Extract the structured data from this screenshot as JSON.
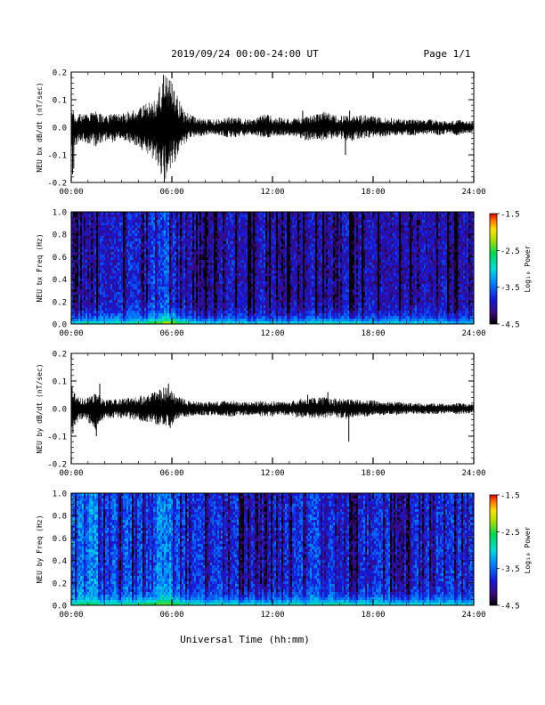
{
  "header": {
    "title": "2019/09/24  00:00-24:00 UT",
    "page": "Page 1/1"
  },
  "footer": {
    "xlabel": "Universal Time (hh:mm)"
  },
  "colorbar": {
    "label": "Log₁₀ Power",
    "ticks": [
      "-1.5",
      "-2.5",
      "-3.5",
      "-4.5"
    ],
    "tick_values": [
      -1.5,
      -2.5,
      -3.5,
      -4.5
    ],
    "range": [
      -4.5,
      -1.5
    ]
  },
  "chart_data": [
    {
      "type": "line",
      "ylabel": "NEU bx dB/dt (nT/sec)",
      "xlim": [
        "00:00",
        "24:00"
      ],
      "ylim": [
        -0.2,
        0.2
      ],
      "xticks": [
        "00:00",
        "06:00",
        "12:00",
        "18:00",
        "24:00"
      ],
      "yticks": [
        "0.2",
        "0.1",
        "0.0",
        "-0.1",
        "-0.2"
      ],
      "ytick_values": [
        0.2,
        0.1,
        0.0,
        -0.1,
        -0.2
      ],
      "x_hours": [
        0,
        0.5,
        1,
        1.5,
        2,
        2.5,
        3,
        3.5,
        4,
        4.5,
        5,
        5.5,
        6,
        6.5,
        7,
        7.5,
        8,
        8.5,
        9,
        9.5,
        10,
        10.5,
        11,
        11.5,
        12,
        12.5,
        13,
        13.5,
        14,
        14.5,
        15,
        15.5,
        16,
        16.5,
        17,
        17.5,
        18,
        18.5,
        19,
        19.5,
        20,
        20.5,
        21,
        21.5,
        22,
        22.5,
        23,
        23.5,
        24
      ],
      "env_max": [
        0.06,
        0.05,
        0.05,
        0.06,
        0.04,
        0.05,
        0.05,
        0.06,
        0.07,
        0.09,
        0.1,
        0.19,
        0.17,
        0.09,
        0.05,
        0.035,
        0.03,
        0.028,
        0.03,
        0.04,
        0.035,
        0.03,
        0.03,
        0.05,
        0.04,
        0.035,
        0.03,
        0.035,
        0.04,
        0.045,
        0.06,
        0.05,
        0.045,
        0.04,
        0.045,
        0.045,
        0.04,
        0.035,
        0.035,
        0.03,
        0.03,
        0.03,
        0.025,
        0.03,
        0.025,
        0.02,
        0.03,
        0.025,
        0.02
      ],
      "env_min": [
        -0.09,
        -0.05,
        -0.06,
        -0.07,
        -0.05,
        -0.055,
        -0.045,
        -0.06,
        -0.07,
        -0.1,
        -0.12,
        -0.2,
        -0.15,
        -0.08,
        -0.045,
        -0.035,
        -0.03,
        -0.025,
        -0.03,
        -0.04,
        -0.035,
        -0.03,
        -0.03,
        -0.04,
        -0.035,
        -0.03,
        -0.03,
        -0.035,
        -0.05,
        -0.045,
        -0.05,
        -0.045,
        -0.04,
        -0.055,
        -0.045,
        -0.04,
        -0.035,
        -0.035,
        -0.03,
        -0.03,
        -0.03,
        -0.03,
        -0.025,
        -0.025,
        -0.03,
        -0.02,
        -0.03,
        -0.02,
        -0.02
      ],
      "spikes": [
        [
          0.08,
          -0.17
        ],
        [
          0.15,
          -0.15
        ],
        [
          5.5,
          0.19
        ],
        [
          5.55,
          -0.2
        ],
        [
          5.85,
          0.17
        ],
        [
          6.2,
          -0.1
        ],
        [
          13.8,
          0.06
        ],
        [
          16.35,
          -0.1
        ],
        [
          16.6,
          0.06
        ]
      ]
    },
    {
      "type": "heatmap",
      "ylabel": "NEU bx Freq (Hz)",
      "xlim": [
        "00:00",
        "24:00"
      ],
      "ylim": [
        0.0,
        1.0
      ],
      "xticks": [
        "00:00",
        "06:00",
        "12:00",
        "18:00",
        "24:00"
      ],
      "yticks": [
        "1.0",
        "0.8",
        "0.6",
        "0.4",
        "0.2",
        "0.0"
      ],
      "ytick_values": [
        1.0,
        0.8,
        0.6,
        0.4,
        0.2,
        0.0
      ],
      "z_label": "Log₁₀ Power",
      "z_range": [
        -4.5,
        -1.5
      ],
      "background_level": [
        -3.9,
        -3.8,
        -3.8,
        -3.85,
        -3.9,
        -3.9,
        -3.85,
        -3.8,
        -3.75,
        -3.7,
        -3.65,
        -3.6,
        -3.6,
        -3.75,
        -3.85,
        -3.9,
        -3.95,
        -3.95,
        -3.95,
        -3.9,
        -3.95,
        -3.95,
        -3.95,
        -3.9,
        -3.9,
        -3.95,
        -3.95,
        -3.9,
        -3.9,
        -3.85,
        -3.85,
        -3.85,
        -3.9,
        -3.9,
        -3.9,
        -3.9,
        -3.95,
        -3.95,
        -3.95,
        -3.95,
        -3.95,
        -3.95,
        -3.95,
        -3.95,
        -3.95,
        -3.95,
        -3.95,
        -3.95,
        -3.95
      ],
      "low_freq_level": [
        -2.8,
        -2.7,
        -2.6,
        -2.7,
        -2.8,
        -2.8,
        -2.8,
        -2.7,
        -2.6,
        -2.5,
        -2.3,
        -2.1,
        -2.0,
        -2.4,
        -2.7,
        -2.8,
        -2.9,
        -2.9,
        -2.9,
        -2.9,
        -2.9,
        -2.9,
        -2.9,
        -2.9,
        -2.9,
        -2.9,
        -2.9,
        -2.9,
        -2.8,
        -2.8,
        -2.7,
        -2.7,
        -2.8,
        -2.8,
        -2.8,
        -2.9,
        -2.9,
        -2.9,
        -2.9,
        -2.9,
        -2.9,
        -2.9,
        -2.95,
        -2.95,
        -2.95,
        -2.95,
        -3.0,
        -3.0,
        -3.0
      ]
    },
    {
      "type": "line",
      "ylabel": "NEU by dB/dt (nT/sec)",
      "xlim": [
        "00:00",
        "24:00"
      ],
      "ylim": [
        -0.2,
        0.2
      ],
      "xticks": [
        "00:00",
        "06:00",
        "12:00",
        "18:00",
        "24:00"
      ],
      "yticks": [
        "0.2",
        "0.1",
        "0.0",
        "-0.1",
        "-0.2"
      ],
      "ytick_values": [
        0.2,
        0.1,
        0.0,
        -0.1,
        -0.2
      ],
      "x_hours": [
        0,
        0.5,
        1,
        1.5,
        2,
        2.5,
        3,
        3.5,
        4,
        4.5,
        5,
        5.5,
        6,
        6.5,
        7,
        7.5,
        8,
        8.5,
        9,
        9.5,
        10,
        10.5,
        11,
        11.5,
        12,
        12.5,
        13,
        13.5,
        14,
        14.5,
        15,
        15.5,
        16,
        16.5,
        17,
        17.5,
        18,
        18.5,
        19,
        19.5,
        20,
        20.5,
        21,
        21.5,
        22,
        22.5,
        23,
        23.5,
        24
      ],
      "env_max": [
        0.07,
        0.04,
        0.04,
        0.06,
        0.03,
        0.035,
        0.035,
        0.04,
        0.045,
        0.05,
        0.06,
        0.08,
        0.07,
        0.04,
        0.03,
        0.025,
        0.025,
        0.025,
        0.03,
        0.03,
        0.025,
        0.025,
        0.025,
        0.03,
        0.03,
        0.025,
        0.025,
        0.035,
        0.04,
        0.04,
        0.045,
        0.035,
        0.04,
        0.035,
        0.035,
        0.03,
        0.03,
        0.025,
        0.025,
        0.025,
        0.02,
        0.02,
        0.02,
        0.02,
        0.02,
        0.015,
        0.02,
        0.02,
        0.015
      ],
      "env_min": [
        -0.08,
        -0.04,
        -0.05,
        -0.08,
        -0.035,
        -0.035,
        -0.035,
        -0.04,
        -0.045,
        -0.05,
        -0.06,
        -0.07,
        -0.06,
        -0.035,
        -0.03,
        -0.025,
        -0.025,
        -0.025,
        -0.025,
        -0.03,
        -0.025,
        -0.025,
        -0.025,
        -0.03,
        -0.03,
        -0.025,
        -0.025,
        -0.035,
        -0.035,
        -0.035,
        -0.035,
        -0.03,
        -0.035,
        -0.04,
        -0.03,
        -0.03,
        -0.025,
        -0.025,
        -0.02,
        -0.025,
        -0.02,
        -0.02,
        -0.02,
        -0.02,
        -0.02,
        -0.015,
        -0.02,
        -0.02,
        -0.015
      ],
      "spikes": [
        [
          0.05,
          0.08
        ],
        [
          0.1,
          -0.09
        ],
        [
          1.5,
          -0.1
        ],
        [
          1.7,
          0.09
        ],
        [
          5.8,
          0.09
        ],
        [
          5.9,
          -0.07
        ],
        [
          16.55,
          -0.12
        ],
        [
          15.3,
          0.06
        ],
        [
          14.1,
          0.05
        ]
      ]
    },
    {
      "type": "heatmap",
      "ylabel": "NEU by Freq (Hz)",
      "xlim": [
        "00:00",
        "24:00"
      ],
      "ylim": [
        0.0,
        1.0
      ],
      "xticks": [
        "00:00",
        "06:00",
        "12:00",
        "18:00",
        "24:00"
      ],
      "yticks": [
        "1.0",
        "0.8",
        "0.6",
        "0.4",
        "0.2",
        "0.0"
      ],
      "ytick_values": [
        1.0,
        0.8,
        0.6,
        0.4,
        0.2,
        0.0
      ],
      "z_label": "Log₁₀ Power",
      "z_range": [
        -4.5,
        -1.5
      ],
      "background_level": [
        -3.5,
        -3.4,
        -3.3,
        -3.4,
        -3.5,
        -3.55,
        -3.6,
        -3.6,
        -3.55,
        -3.5,
        -3.45,
        -3.4,
        -3.4,
        -3.5,
        -3.6,
        -3.65,
        -3.65,
        -3.7,
        -3.7,
        -3.7,
        -3.7,
        -3.7,
        -3.7,
        -3.7,
        -3.7,
        -3.7,
        -3.7,
        -3.7,
        -3.65,
        -3.65,
        -3.65,
        -3.65,
        -3.7,
        -3.7,
        -3.7,
        -3.7,
        -3.7,
        -3.7,
        -3.7,
        -3.7,
        -3.7,
        -3.7,
        -3.7,
        -3.7,
        -3.7,
        -3.7,
        -3.7,
        -3.7,
        -3.7
      ],
      "low_freq_level": [
        -2.7,
        -2.6,
        -2.5,
        -2.6,
        -2.7,
        -2.7,
        -2.7,
        -2.6,
        -2.5,
        -2.4,
        -2.3,
        -2.2,
        -2.2,
        -2.5,
        -2.7,
        -2.8,
        -2.8,
        -2.8,
        -2.8,
        -2.8,
        -2.8,
        -2.8,
        -2.8,
        -2.8,
        -2.8,
        -2.8,
        -2.8,
        -2.8,
        -2.8,
        -2.7,
        -2.7,
        -2.7,
        -2.7,
        -2.7,
        -2.7,
        -2.8,
        -2.8,
        -2.8,
        -2.8,
        -2.8,
        -2.8,
        -2.8,
        -2.85,
        -2.85,
        -2.85,
        -2.85,
        -2.9,
        -2.9,
        -2.9
      ]
    }
  ]
}
